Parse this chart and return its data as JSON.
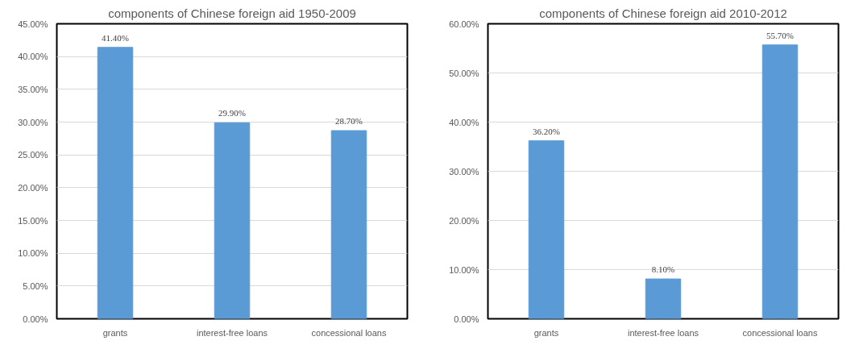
{
  "chart_data": [
    {
      "type": "bar",
      "title": "components of Chinese foreign aid 1950-2009",
      "categories": [
        "grants",
        "interest-free loans",
        "concessional loans"
      ],
      "values": [
        41.4,
        29.9,
        28.7
      ],
      "value_labels": [
        "41.40%",
        "29.90%",
        "28.70%"
      ],
      "color": "#5b9bd5",
      "ylim": [
        0,
        45
      ],
      "yticks": [
        {
          "value": 0,
          "label": "0.00%"
        },
        {
          "value": 5,
          "label": "5.00%"
        },
        {
          "value": 10,
          "label": "10.00%"
        },
        {
          "value": 15,
          "label": "15.00%"
        },
        {
          "value": 20,
          "label": "20.00%"
        },
        {
          "value": 25,
          "label": "25.00%"
        },
        {
          "value": 30,
          "label": "30.00%"
        },
        {
          "value": 35,
          "label": "35.00%"
        },
        {
          "value": 40,
          "label": "40.00%"
        },
        {
          "value": 45,
          "label": "45.00%"
        }
      ],
      "grid": "y"
    },
    {
      "type": "bar",
      "title": "components of Chinese foreign aid 2010-2012",
      "categories": [
        "grants",
        "interest-free loans",
        "concessional loans"
      ],
      "values": [
        36.2,
        8.1,
        55.7
      ],
      "value_labels": [
        "36.20%",
        "8.10%",
        "55.70%"
      ],
      "color": "#5b9bd5",
      "ylim": [
        0,
        60
      ],
      "yticks": [
        {
          "value": 0,
          "label": "0.00%"
        },
        {
          "value": 10,
          "label": "10.00%"
        },
        {
          "value": 20,
          "label": "20.00%"
        },
        {
          "value": 30,
          "label": "30.00%"
        },
        {
          "value": 40,
          "label": "40.00%"
        },
        {
          "value": 50,
          "label": "50.00%"
        },
        {
          "value": 60,
          "label": "60.00%"
        }
      ],
      "grid": "y"
    }
  ]
}
